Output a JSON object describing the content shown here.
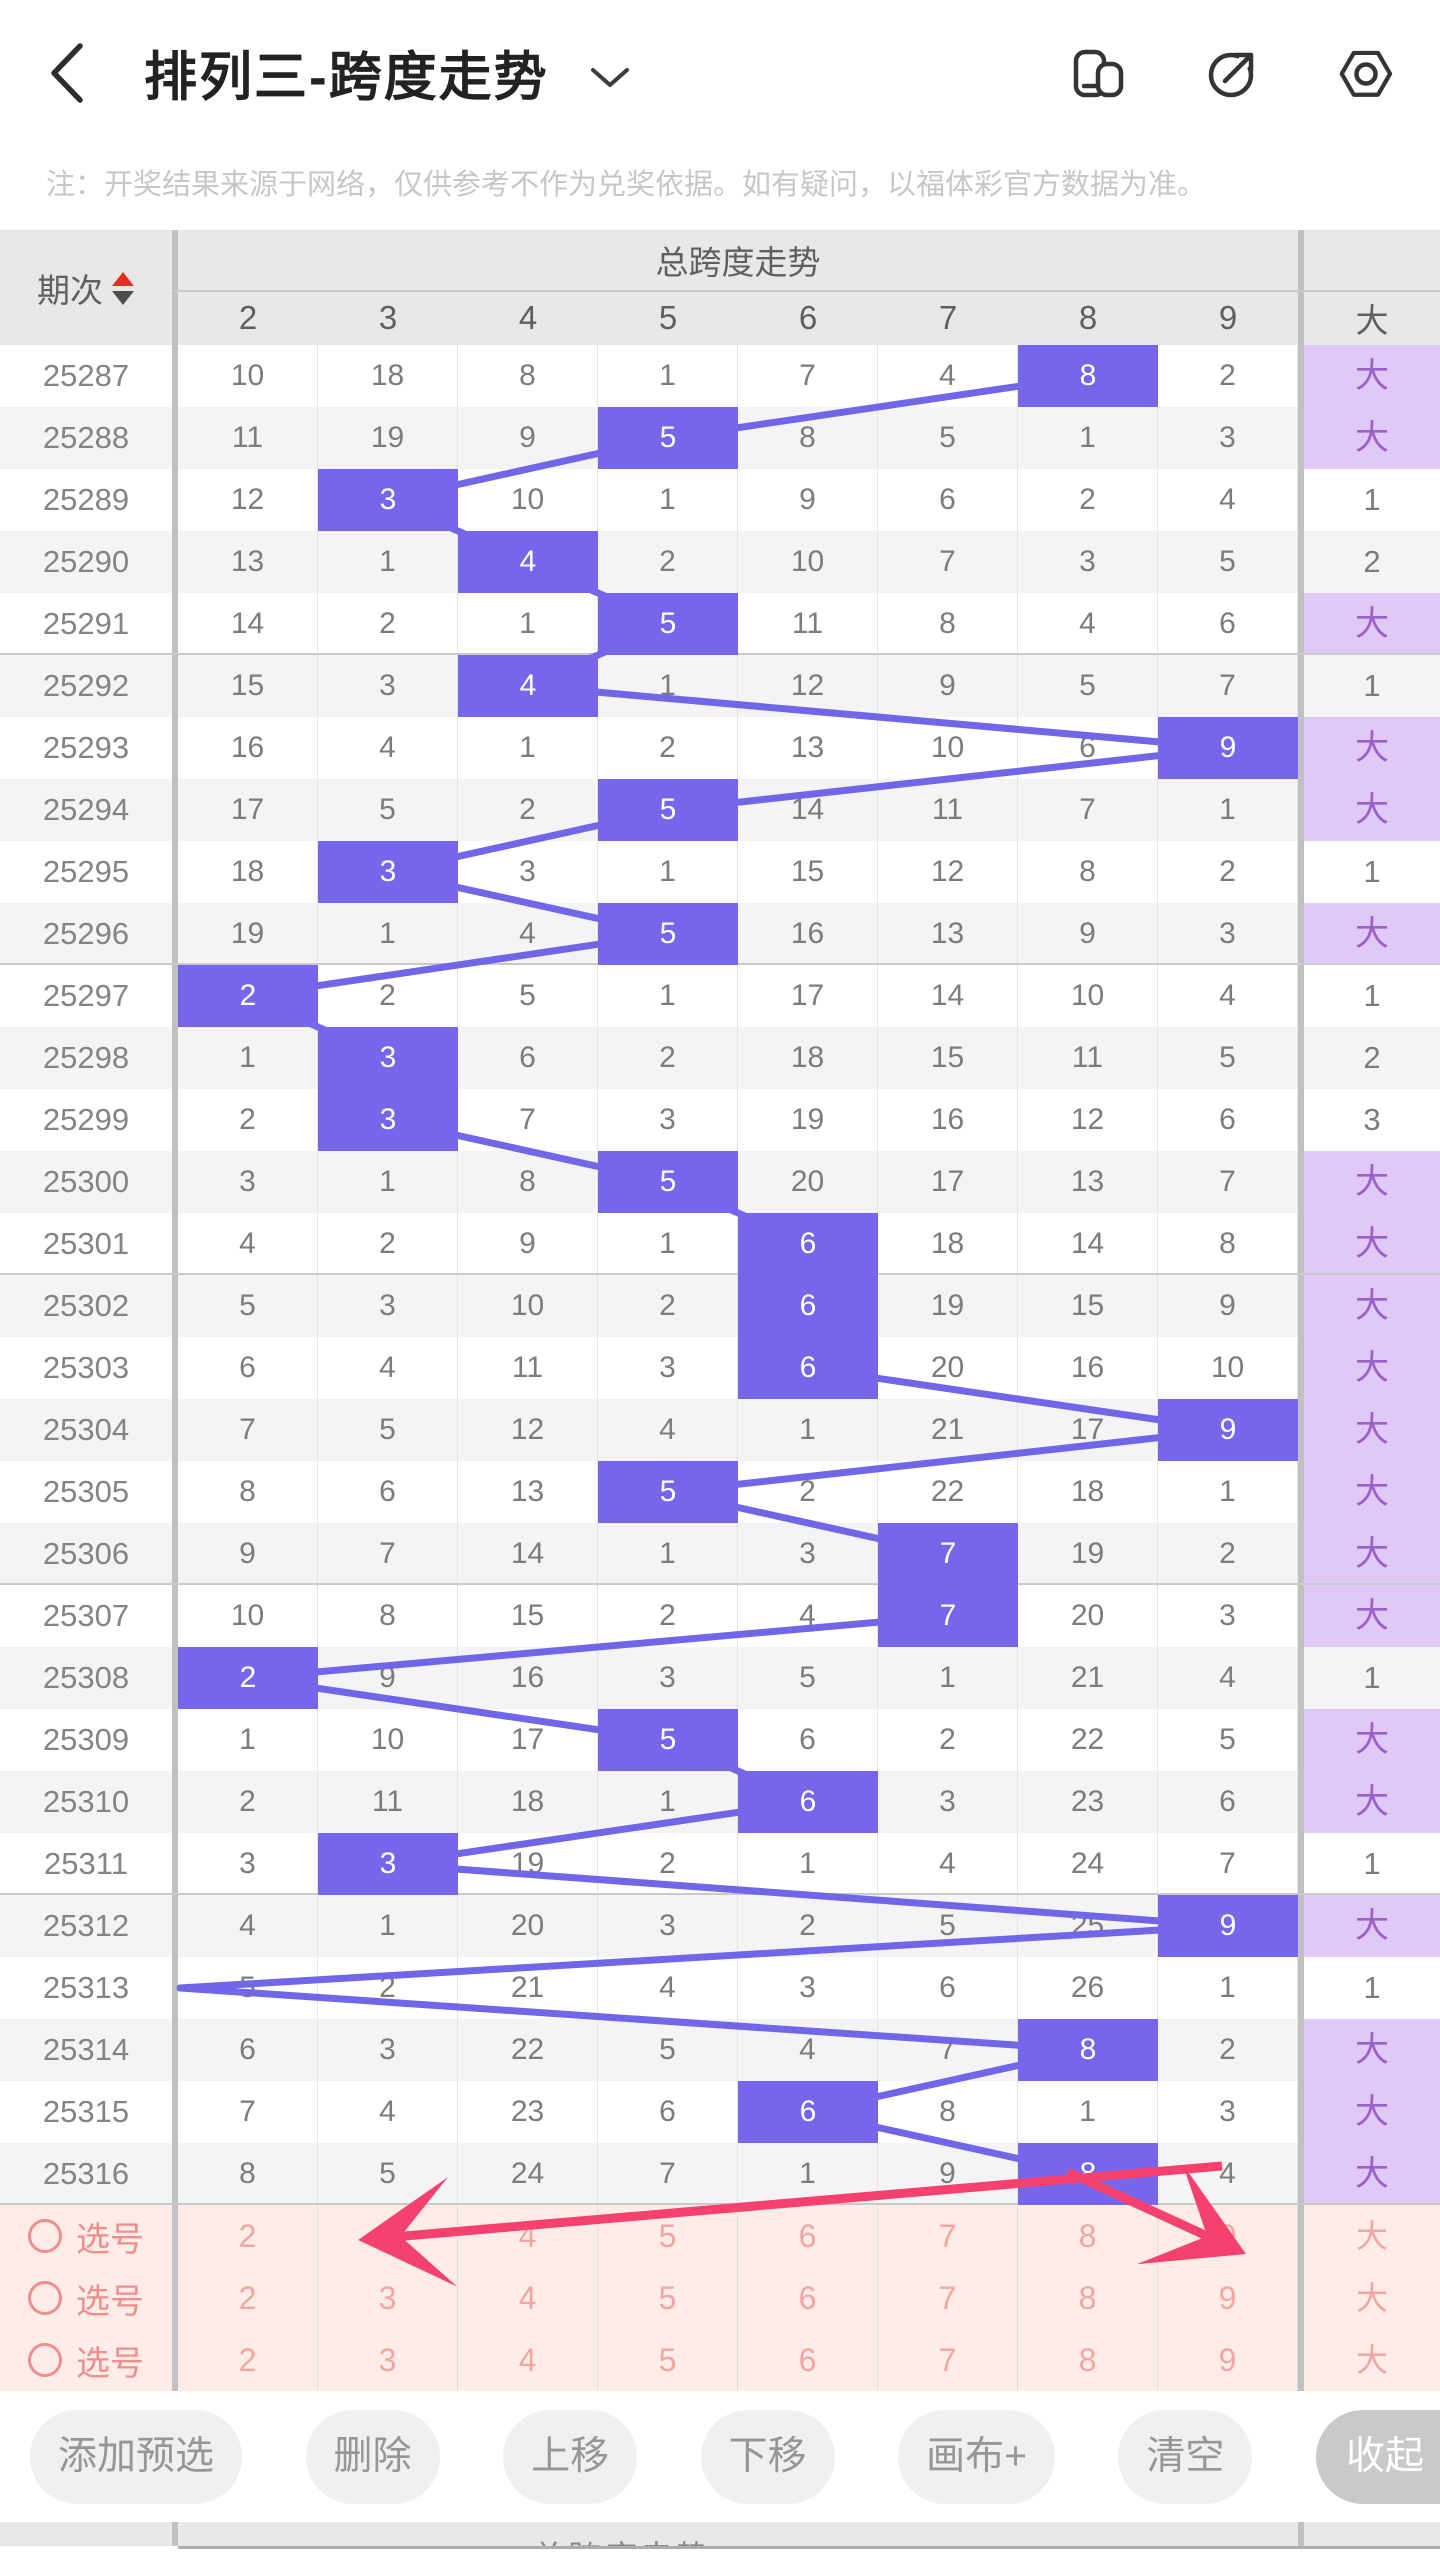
{
  "app": {
    "title": "排列三-跨度走势",
    "icons": [
      "back-chevron",
      "chevron-down",
      "layout-switch",
      "share",
      "settings"
    ]
  },
  "notice": "注：开奖结果来源于网络，仅供参考不作为兑奖依据。如有疑问，以福体彩官方数据为准。",
  "table": {
    "period_header": "期次",
    "group_header": "总跨度走势",
    "columns": [
      "2",
      "3",
      "4",
      "5",
      "6",
      "7",
      "8",
      "9"
    ],
    "big_header": "大",
    "rows": [
      {
        "period": "25287",
        "values": [
          "10",
          "18",
          "8",
          "1",
          "7",
          "4",
          "8",
          "2"
        ],
        "highlight_col": 8,
        "big": "大"
      },
      {
        "period": "25288",
        "values": [
          "11",
          "19",
          "9",
          "5",
          "8",
          "5",
          "1",
          "3"
        ],
        "highlight_col": 5,
        "big": "大"
      },
      {
        "period": "25289",
        "values": [
          "12",
          "3",
          "10",
          "1",
          "9",
          "6",
          "2",
          "4"
        ],
        "highlight_col": 3,
        "big": "1"
      },
      {
        "period": "25290",
        "values": [
          "13",
          "1",
          "4",
          "2",
          "10",
          "7",
          "3",
          "5"
        ],
        "highlight_col": 4,
        "big": "2"
      },
      {
        "period": "25291",
        "values": [
          "14",
          "2",
          "1",
          "5",
          "11",
          "8",
          "4",
          "6"
        ],
        "highlight_col": 5,
        "big": "大"
      },
      {
        "period": "25292",
        "values": [
          "15",
          "3",
          "4",
          "1",
          "12",
          "9",
          "5",
          "7"
        ],
        "highlight_col": 4,
        "big": "1"
      },
      {
        "period": "25293",
        "values": [
          "16",
          "4",
          "1",
          "2",
          "13",
          "10",
          "6",
          "9"
        ],
        "highlight_col": 9,
        "big": "大"
      },
      {
        "period": "25294",
        "values": [
          "17",
          "5",
          "2",
          "5",
          "14",
          "11",
          "7",
          "1"
        ],
        "highlight_col": 5,
        "big": "大"
      },
      {
        "period": "25295",
        "values": [
          "18",
          "3",
          "3",
          "1",
          "15",
          "12",
          "8",
          "2"
        ],
        "highlight_col": 3,
        "big": "1"
      },
      {
        "period": "25296",
        "values": [
          "19",
          "1",
          "4",
          "5",
          "16",
          "13",
          "9",
          "3"
        ],
        "highlight_col": 5,
        "big": "大"
      },
      {
        "period": "25297",
        "values": [
          "2",
          "2",
          "5",
          "1",
          "17",
          "14",
          "10",
          "4"
        ],
        "highlight_col": 2,
        "big": "1"
      },
      {
        "period": "25298",
        "values": [
          "1",
          "3",
          "6",
          "2",
          "18",
          "15",
          "11",
          "5"
        ],
        "highlight_col": 3,
        "big": "2"
      },
      {
        "period": "25299",
        "values": [
          "2",
          "3",
          "7",
          "3",
          "19",
          "16",
          "12",
          "6"
        ],
        "highlight_col": 3,
        "big": "3"
      },
      {
        "period": "25300",
        "values": [
          "3",
          "1",
          "8",
          "5",
          "20",
          "17",
          "13",
          "7"
        ],
        "highlight_col": 5,
        "big": "大"
      },
      {
        "period": "25301",
        "values": [
          "4",
          "2",
          "9",
          "1",
          "6",
          "18",
          "14",
          "8"
        ],
        "highlight_col": 6,
        "big": "大"
      },
      {
        "period": "25302",
        "values": [
          "5",
          "3",
          "10",
          "2",
          "6",
          "19",
          "15",
          "9"
        ],
        "highlight_col": 6,
        "big": "大"
      },
      {
        "period": "25303",
        "values": [
          "6",
          "4",
          "11",
          "3",
          "6",
          "20",
          "16",
          "10"
        ],
        "highlight_col": 6,
        "big": "大"
      },
      {
        "period": "25304",
        "values": [
          "7",
          "5",
          "12",
          "4",
          "1",
          "21",
          "17",
          "9"
        ],
        "highlight_col": 9,
        "big": "大"
      },
      {
        "period": "25305",
        "values": [
          "8",
          "6",
          "13",
          "5",
          "2",
          "22",
          "18",
          "1"
        ],
        "highlight_col": 5,
        "big": "大"
      },
      {
        "period": "25306",
        "values": [
          "9",
          "7",
          "14",
          "1",
          "3",
          "7",
          "19",
          "2"
        ],
        "highlight_col": 7,
        "big": "大"
      },
      {
        "period": "25307",
        "values": [
          "10",
          "8",
          "15",
          "2",
          "4",
          "7",
          "20",
          "3"
        ],
        "highlight_col": 7,
        "big": "大"
      },
      {
        "period": "25308",
        "values": [
          "2",
          "9",
          "16",
          "3",
          "5",
          "1",
          "21",
          "4"
        ],
        "highlight_col": 2,
        "big": "1"
      },
      {
        "period": "25309",
        "values": [
          "1",
          "10",
          "17",
          "5",
          "6",
          "2",
          "22",
          "5"
        ],
        "highlight_col": 5,
        "big": "大"
      },
      {
        "period": "25310",
        "values": [
          "2",
          "11",
          "18",
          "1",
          "6",
          "3",
          "23",
          "6"
        ],
        "highlight_col": 6,
        "big": "大"
      },
      {
        "period": "25311",
        "values": [
          "3",
          "3",
          "19",
          "2",
          "1",
          "4",
          "24",
          "7"
        ],
        "highlight_col": 3,
        "big": "1"
      },
      {
        "period": "25312",
        "values": [
          "4",
          "1",
          "20",
          "3",
          "2",
          "5",
          "25",
          "9"
        ],
        "highlight_col": 9,
        "big": "大"
      },
      {
        "period": "25313",
        "values": [
          "5",
          "2",
          "21",
          "4",
          "3",
          "6",
          "26",
          "1"
        ],
        "highlight_col": 0,
        "off_left": true,
        "big": "1"
      },
      {
        "period": "25314",
        "values": [
          "6",
          "3",
          "22",
          "5",
          "4",
          "7",
          "8",
          "2"
        ],
        "highlight_col": 8,
        "big": "大"
      },
      {
        "period": "25315",
        "values": [
          "7",
          "4",
          "23",
          "6",
          "6",
          "8",
          "1",
          "3"
        ],
        "highlight_col": 6,
        "big": "大"
      },
      {
        "period": "25316",
        "values": [
          "8",
          "5",
          "24",
          "7",
          "1",
          "9",
          "8",
          "4"
        ],
        "highlight_col": 8,
        "big": "大"
      }
    ],
    "selection_rows": [
      {
        "label": "选号",
        "values": [
          "2",
          "3",
          "4",
          "5",
          "6",
          "7",
          "8",
          "9"
        ],
        "big": "大"
      },
      {
        "label": "选号",
        "values": [
          "2",
          "3",
          "4",
          "5",
          "6",
          "7",
          "8",
          "9"
        ],
        "big": "大"
      },
      {
        "label": "选号",
        "values": [
          "2",
          "3",
          "4",
          "5",
          "6",
          "7",
          "8",
          "9"
        ],
        "big": "大"
      }
    ]
  },
  "toolbar": {
    "buttons": [
      "添加预选",
      "删除",
      "上移",
      "下移",
      "画布+",
      "清空",
      "收起"
    ]
  },
  "bottom_partial": {
    "group_header": "总跨度走势"
  },
  "colors": {
    "highlight_purple": "#7566ec",
    "trend_line": "#7166e8",
    "big_cell_bg": "#e1c9f5",
    "big_cell_text": "#9c60ca",
    "selection_bg": "#fdece7",
    "selection_text": "#f3a6a1",
    "arrow_pink": "#f4416d",
    "sort_up_red": "#dd3326"
  }
}
